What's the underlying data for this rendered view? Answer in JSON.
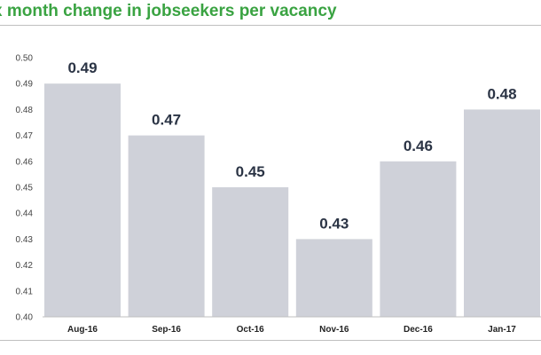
{
  "chart_data": {
    "type": "bar",
    "title": "x month change in jobseekers per vacancy",
    "categories": [
      "Aug-16",
      "Sep-16",
      "Oct-16",
      "Nov-16",
      "Dec-16",
      "Jan-17"
    ],
    "values": [
      0.49,
      0.47,
      0.45,
      0.43,
      0.46,
      0.48
    ],
    "data_labels": [
      "0.49",
      "0.47",
      "0.45",
      "0.43",
      "0.46",
      "0.48"
    ],
    "yticks": [
      "0.40",
      "0.41",
      "0.42",
      "0.43",
      "0.44",
      "0.45",
      "0.46",
      "0.47",
      "0.48",
      "0.49",
      "0.50"
    ],
    "ylim": [
      0.4,
      0.5
    ],
    "xlabel": "",
    "ylabel": "",
    "grid": false,
    "colors": {
      "bar": "#cfd1d9",
      "title": "#3aa342"
    }
  }
}
